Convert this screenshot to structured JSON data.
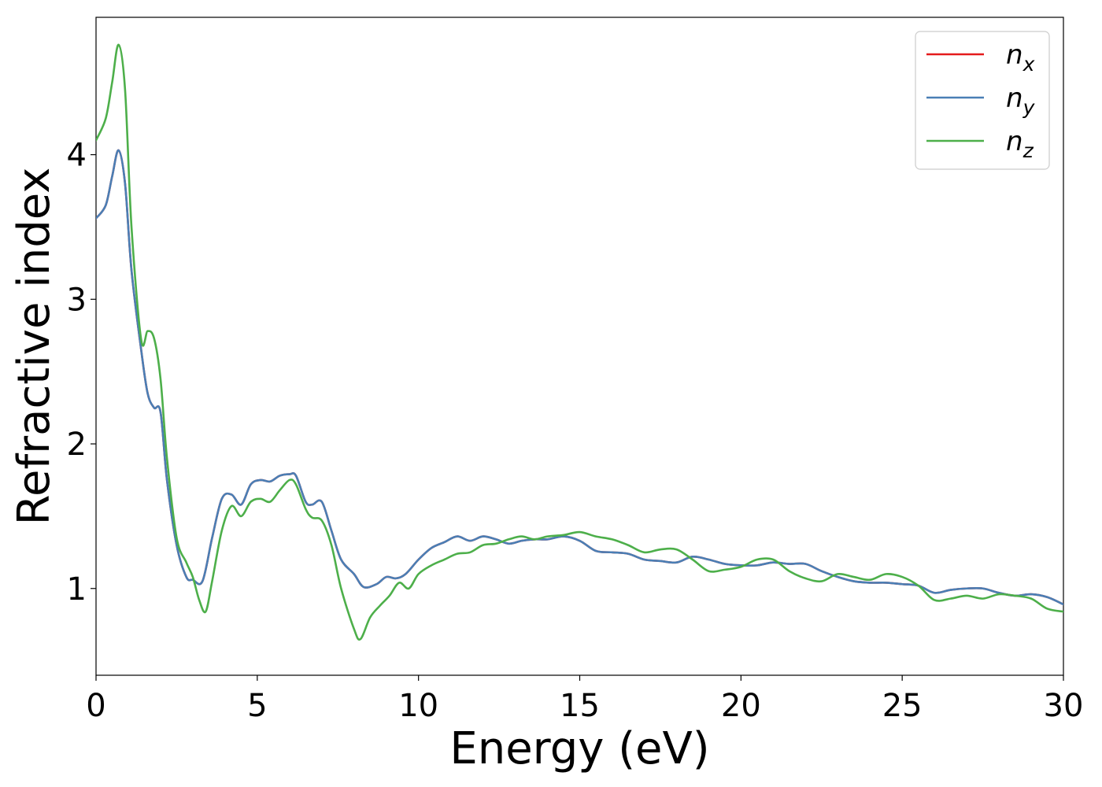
{
  "chart_data": {
    "type": "line",
    "xlabel": "Energy (eV)",
    "ylabel": "Refractive index",
    "xlim": [
      0,
      30
    ],
    "ylim": [
      0.4,
      4.95
    ],
    "xticks": [
      0,
      5,
      10,
      15,
      20,
      25,
      30
    ],
    "yticks": [
      1,
      2,
      3,
      4
    ],
    "grid": false,
    "legend_position": "top-right",
    "series": [
      {
        "name": "n_x",
        "label_base": "n",
        "label_sub": "x",
        "color": "#e41a1c",
        "x": [
          0,
          0.3,
          0.5,
          0.7,
          0.9,
          1.1,
          1.4,
          1.6,
          1.8,
          2.0,
          2.2,
          2.5,
          2.8,
          3.0,
          3.3,
          3.6,
          3.9,
          4.2,
          4.5,
          4.8,
          5.1,
          5.4,
          5.7,
          6.0,
          6.2,
          6.5,
          6.7,
          7.0,
          7.3,
          7.6,
          8.0,
          8.3,
          8.7,
          9.0,
          9.3,
          9.6,
          10.0,
          10.4,
          10.8,
          11.2,
          11.6,
          12.0,
          12.4,
          12.8,
          13.2,
          13.6,
          14.0,
          14.5,
          15.0,
          15.5,
          16.0,
          16.5,
          17.0,
          17.5,
          18.0,
          18.5,
          19.0,
          19.5,
          20.0,
          20.5,
          21.0,
          21.5,
          22.0,
          22.5,
          23.0,
          23.5,
          24.0,
          24.5,
          25.0,
          25.5,
          26.0,
          26.5,
          27.0,
          27.5,
          28.0,
          28.5,
          29.0,
          29.5,
          30.0
        ],
        "y": [
          3.56,
          3.65,
          3.85,
          4.03,
          3.8,
          3.2,
          2.65,
          2.35,
          2.25,
          2.22,
          1.75,
          1.3,
          1.08,
          1.06,
          1.05,
          1.35,
          1.62,
          1.65,
          1.58,
          1.72,
          1.75,
          1.74,
          1.78,
          1.79,
          1.78,
          1.6,
          1.58,
          1.6,
          1.4,
          1.2,
          1.1,
          1.01,
          1.03,
          1.08,
          1.07,
          1.1,
          1.2,
          1.28,
          1.32,
          1.36,
          1.33,
          1.36,
          1.34,
          1.31,
          1.33,
          1.34,
          1.34,
          1.36,
          1.33,
          1.26,
          1.25,
          1.24,
          1.2,
          1.19,
          1.18,
          1.22,
          1.2,
          1.17,
          1.16,
          1.16,
          1.18,
          1.17,
          1.17,
          1.12,
          1.08,
          1.05,
          1.04,
          1.04,
          1.03,
          1.02,
          0.97,
          0.99,
          1.0,
          1.0,
          0.97,
          0.95,
          0.96,
          0.94,
          0.89
        ]
      },
      {
        "name": "n_y",
        "label_base": "n",
        "label_sub": "y",
        "color": "#4a7fb5",
        "x": [
          0,
          0.3,
          0.5,
          0.7,
          0.9,
          1.1,
          1.4,
          1.6,
          1.8,
          2.0,
          2.2,
          2.5,
          2.8,
          3.0,
          3.3,
          3.6,
          3.9,
          4.2,
          4.5,
          4.8,
          5.1,
          5.4,
          5.7,
          6.0,
          6.2,
          6.5,
          6.7,
          7.0,
          7.3,
          7.6,
          8.0,
          8.3,
          8.7,
          9.0,
          9.3,
          9.6,
          10.0,
          10.4,
          10.8,
          11.2,
          11.6,
          12.0,
          12.4,
          12.8,
          13.2,
          13.6,
          14.0,
          14.5,
          15.0,
          15.5,
          16.0,
          16.5,
          17.0,
          17.5,
          18.0,
          18.5,
          19.0,
          19.5,
          20.0,
          20.5,
          21.0,
          21.5,
          22.0,
          22.5,
          23.0,
          23.5,
          24.0,
          24.5,
          25.0,
          25.5,
          26.0,
          26.5,
          27.0,
          27.5,
          28.0,
          28.5,
          29.0,
          29.5,
          30.0
        ],
        "y": [
          3.56,
          3.65,
          3.85,
          4.03,
          3.8,
          3.2,
          2.65,
          2.35,
          2.25,
          2.22,
          1.75,
          1.3,
          1.08,
          1.06,
          1.05,
          1.35,
          1.62,
          1.65,
          1.58,
          1.72,
          1.75,
          1.74,
          1.78,
          1.79,
          1.78,
          1.6,
          1.58,
          1.6,
          1.4,
          1.2,
          1.1,
          1.01,
          1.03,
          1.08,
          1.07,
          1.1,
          1.2,
          1.28,
          1.32,
          1.36,
          1.33,
          1.36,
          1.34,
          1.31,
          1.33,
          1.34,
          1.34,
          1.36,
          1.33,
          1.26,
          1.25,
          1.24,
          1.2,
          1.19,
          1.18,
          1.22,
          1.2,
          1.17,
          1.16,
          1.16,
          1.18,
          1.17,
          1.17,
          1.12,
          1.08,
          1.05,
          1.04,
          1.04,
          1.03,
          1.02,
          0.97,
          0.99,
          1.0,
          1.0,
          0.97,
          0.95,
          0.96,
          0.94,
          0.89
        ]
      },
      {
        "name": "n_z",
        "label_base": "n",
        "label_sub": "z",
        "color": "#4daf4a",
        "x": [
          0,
          0.3,
          0.5,
          0.7,
          0.9,
          1.1,
          1.4,
          1.6,
          1.8,
          2.0,
          2.2,
          2.5,
          2.8,
          3.0,
          3.2,
          3.4,
          3.6,
          3.9,
          4.2,
          4.5,
          4.8,
          5.1,
          5.4,
          5.7,
          6.0,
          6.2,
          6.5,
          6.7,
          7.0,
          7.3,
          7.6,
          8.0,
          8.2,
          8.5,
          8.8,
          9.1,
          9.4,
          9.7,
          10.0,
          10.4,
          10.8,
          11.2,
          11.6,
          12.0,
          12.4,
          12.8,
          13.2,
          13.6,
          14.0,
          14.5,
          15.0,
          15.5,
          16.0,
          16.5,
          17.0,
          17.5,
          18.0,
          18.5,
          19.0,
          19.5,
          20.0,
          20.5,
          21.0,
          21.5,
          22.0,
          22.5,
          23.0,
          23.5,
          24.0,
          24.5,
          25.0,
          25.5,
          26.0,
          26.5,
          27.0,
          27.5,
          28.0,
          28.5,
          29.0,
          29.5,
          30.0
        ],
        "y": [
          4.1,
          4.25,
          4.5,
          4.76,
          4.45,
          3.5,
          2.72,
          2.78,
          2.73,
          2.45,
          1.9,
          1.35,
          1.18,
          1.08,
          0.92,
          0.84,
          1.05,
          1.4,
          1.57,
          1.5,
          1.6,
          1.62,
          1.6,
          1.68,
          1.75,
          1.72,
          1.55,
          1.49,
          1.47,
          1.3,
          1.0,
          0.72,
          0.65,
          0.8,
          0.88,
          0.95,
          1.04,
          1.0,
          1.1,
          1.16,
          1.2,
          1.24,
          1.25,
          1.3,
          1.31,
          1.34,
          1.36,
          1.34,
          1.36,
          1.37,
          1.39,
          1.36,
          1.34,
          1.3,
          1.25,
          1.27,
          1.27,
          1.2,
          1.12,
          1.13,
          1.15,
          1.2,
          1.2,
          1.12,
          1.07,
          1.05,
          1.1,
          1.08,
          1.06,
          1.1,
          1.08,
          1.02,
          0.92,
          0.93,
          0.95,
          0.93,
          0.96,
          0.95,
          0.93,
          0.86,
          0.84
        ]
      }
    ]
  }
}
